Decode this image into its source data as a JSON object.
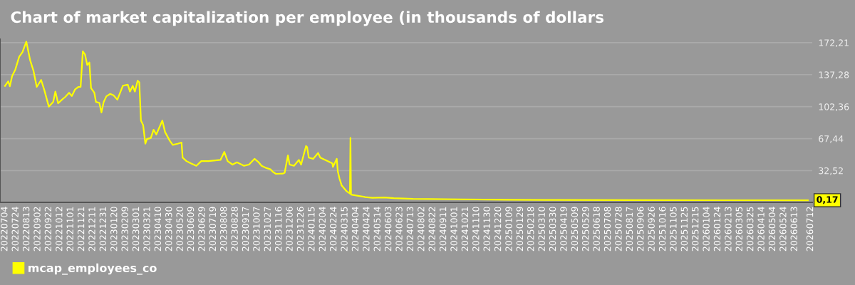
{
  "chart_data": {
    "type": "line",
    "title": "Chart of market capitalization per employee (in thousands of dollars",
    "x": [
      "2022-07-04",
      "2022-07-10",
      "2022-07-13",
      "2022-07-17",
      "2022-07-23",
      "2022-07-30",
      "2022-08-05",
      "2022-08-12",
      "2022-08-19",
      "2022-08-25",
      "2022-08-31",
      "2022-09-08",
      "2022-09-14",
      "2022-09-22",
      "2022-09-30",
      "2022-10-04",
      "2022-10-09",
      "2022-10-16",
      "2022-10-22",
      "2022-10-29",
      "2022-11-03",
      "2022-11-09",
      "2022-11-15",
      "2022-11-19",
      "2022-11-23",
      "2022-11-27",
      "2022-12-01",
      "2022-12-05",
      "2022-12-08",
      "2022-12-14",
      "2022-12-17",
      "2022-12-23",
      "2022-12-27",
      "2022-12-31",
      "2023-01-05",
      "2023-01-12",
      "2023-01-18",
      "2023-01-25",
      "2023-02-04",
      "2023-02-13",
      "2023-02-17",
      "2023-02-22",
      "2023-02-26",
      "2023-03-03",
      "2023-03-06",
      "2023-03-09",
      "2023-03-13",
      "2023-03-17",
      "2023-03-20",
      "2023-03-27",
      "2023-04-01",
      "2023-04-06",
      "2023-04-17",
      "2023-04-22",
      "2023-04-30",
      "2023-05-06",
      "2023-05-15",
      "2023-05-22",
      "2023-05-24",
      "2023-05-31",
      "2023-06-08",
      "2023-06-18",
      "2023-06-27",
      "2023-07-10",
      "2023-08-01",
      "2023-08-08",
      "2023-08-14",
      "2023-08-23",
      "2023-08-31",
      "2023-09-13",
      "2023-09-22",
      "2023-10-02",
      "2023-10-09",
      "2023-10-15",
      "2023-10-24",
      "2023-10-31",
      "2023-11-04",
      "2023-11-10",
      "2023-11-23",
      "2023-11-26",
      "2023-12-02",
      "2023-12-05",
      "2023-12-13",
      "2023-12-22",
      "2023-12-26",
      "2024-01-04",
      "2024-01-06",
      "2024-01-09",
      "2024-01-17",
      "2024-01-26",
      "2024-01-30",
      "2024-02-08",
      "2024-02-21",
      "2024-02-22",
      "2024-02-29",
      "2024-03-02",
      "2024-03-05",
      "2024-03-09",
      "2024-03-18",
      "2024-03-24",
      "2024-03-25",
      "2024-03-26",
      "2024-04-21",
      "2024-05-04",
      "2024-05-26",
      "2024-06-12",
      "2024-07-17",
      "2024-10-12",
      "2025-01-05",
      "2025-04-02",
      "2025-09-05",
      "2026-07-07"
    ],
    "series": [
      {
        "name": "mcap_employees_co",
        "color": "#ffff00",
        "values": [
          125,
          130,
          124.6,
          135.5,
          143,
          156.8,
          161.9,
          173.3,
          153,
          141.6,
          123.9,
          131.5,
          120.1,
          102.4,
          107.5,
          118.8,
          106,
          110,
          113,
          117.5,
          114,
          121.3,
          123.9,
          124,
          162.7,
          159.3,
          147.9,
          150.5,
          122.6,
          117.5,
          107.5,
          106.6,
          96,
          107.4,
          113.7,
          116.3,
          114.8,
          110,
          125.1,
          126.4,
          118.8,
          125.1,
          118.8,
          130.7,
          129,
          87.2,
          82.2,
          61.9,
          67,
          68.2,
          77.1,
          72,
          87.2,
          74.6,
          65.7,
          60.6,
          61.9,
          63.2,
          46.7,
          42.9,
          40.4,
          37.8,
          42.9,
          42.9,
          44.2,
          53,
          42.9,
          39.1,
          41.6,
          37.8,
          39.1,
          45.4,
          42,
          37.8,
          35.3,
          34,
          31.5,
          29,
          29.3,
          30.2,
          49.2,
          39.1,
          37.8,
          44.2,
          39.1,
          59.4,
          58.1,
          46.7,
          45.4,
          51.8,
          46.7,
          44.2,
          40.4,
          36.6,
          45.4,
          31.5,
          23.9,
          16.3,
          10,
          7.5,
          68.2,
          6.4,
          3.7,
          2.9,
          3.2,
          2.4,
          1.7,
          1.2,
          0.7,
          0.5,
          0.3,
          0.17
        ]
      }
    ],
    "annotations": [
      {
        "text": "0,17",
        "x": "2026-07-07",
        "y": 0.17
      }
    ],
    "xlim": [
      "2022-06-25",
      "2026-07-15"
    ],
    "ylim": [
      -2.1,
      176
    ],
    "yticks": [
      {
        "value": 32.52,
        "label": "32,52"
      },
      {
        "value": 67.44,
        "label": "67,44"
      },
      {
        "value": 102.36,
        "label": "102,36"
      },
      {
        "value": 137.28,
        "label": "137,28"
      },
      {
        "value": 172.21,
        "label": "172,21"
      }
    ],
    "xticks": [
      {
        "value": "2022-07-04",
        "label": "20220704"
      },
      {
        "value": "2022-07-24",
        "label": "20220724"
      },
      {
        "value": "2022-08-13",
        "label": "20220813"
      },
      {
        "value": "2022-09-02",
        "label": "20220902"
      },
      {
        "value": "2022-09-22",
        "label": "20220922"
      },
      {
        "value": "2022-10-12",
        "label": "20221012"
      },
      {
        "value": "2022-11-01",
        "label": "20221101"
      },
      {
        "value": "2022-11-21",
        "label": "20221121"
      },
      {
        "value": "2022-12-11",
        "label": "20221211"
      },
      {
        "value": "2022-12-31",
        "label": "20221231"
      },
      {
        "value": "2023-01-20",
        "label": "20230120"
      },
      {
        "value": "2023-02-09",
        "label": "20230209"
      },
      {
        "value": "2023-03-01",
        "label": "20230301"
      },
      {
        "value": "2023-03-21",
        "label": "20230321"
      },
      {
        "value": "2023-04-10",
        "label": "20230410"
      },
      {
        "value": "2023-04-30",
        "label": "20230430"
      },
      {
        "value": "2023-05-20",
        "label": "20230520"
      },
      {
        "value": "2023-06-09",
        "label": "20230609"
      },
      {
        "value": "2023-06-29",
        "label": "20230629"
      },
      {
        "value": "2023-07-19",
        "label": "20230719"
      },
      {
        "value": "2023-08-08",
        "label": "20230808"
      },
      {
        "value": "2023-08-28",
        "label": "20230828"
      },
      {
        "value": "2023-09-17",
        "label": "20230917"
      },
      {
        "value": "2023-10-07",
        "label": "20231007"
      },
      {
        "value": "2023-10-27",
        "label": "20231027"
      },
      {
        "value": "2023-11-16",
        "label": "20231116"
      },
      {
        "value": "2023-12-06",
        "label": "20231206"
      },
      {
        "value": "2023-12-26",
        "label": "20231226"
      },
      {
        "value": "2024-01-15",
        "label": "20240115"
      },
      {
        "value": "2024-02-04",
        "label": "20240204"
      },
      {
        "value": "2024-02-24",
        "label": "20240224"
      },
      {
        "value": "2024-03-15",
        "label": "20240315"
      },
      {
        "value": "2024-04-04",
        "label": "20240404"
      },
      {
        "value": "2024-04-24",
        "label": "20240424"
      },
      {
        "value": "2024-05-14",
        "label": "20240514"
      },
      {
        "value": "2024-06-03",
        "label": "20240603"
      },
      {
        "value": "2024-06-23",
        "label": "20240623"
      },
      {
        "value": "2024-07-13",
        "label": "20240713"
      },
      {
        "value": "2024-08-02",
        "label": "20240802"
      },
      {
        "value": "2024-08-22",
        "label": "20240822"
      },
      {
        "value": "2024-09-11",
        "label": "20240911"
      },
      {
        "value": "2024-10-01",
        "label": "20241001"
      },
      {
        "value": "2024-10-21",
        "label": "20241021"
      },
      {
        "value": "2024-11-10",
        "label": "20241110"
      },
      {
        "value": "2024-11-30",
        "label": "20241130"
      },
      {
        "value": "2024-12-20",
        "label": "20241220"
      },
      {
        "value": "2025-01-09",
        "label": "20250109"
      },
      {
        "value": "2025-01-29",
        "label": "20250129"
      },
      {
        "value": "2025-02-18",
        "label": "20250218"
      },
      {
        "value": "2025-03-10",
        "label": "20250310"
      },
      {
        "value": "2025-03-30",
        "label": "20250330"
      },
      {
        "value": "2025-04-19",
        "label": "20250419"
      },
      {
        "value": "2025-05-09",
        "label": "20250509"
      },
      {
        "value": "2025-05-29",
        "label": "20250529"
      },
      {
        "value": "2025-06-18",
        "label": "20250618"
      },
      {
        "value": "2025-07-08",
        "label": "20250708"
      },
      {
        "value": "2025-07-28",
        "label": "20250728"
      },
      {
        "value": "2025-08-17",
        "label": "20250817"
      },
      {
        "value": "2025-09-06",
        "label": "20250906"
      },
      {
        "value": "2025-09-26",
        "label": "20250926"
      },
      {
        "value": "2025-10-16",
        "label": "20251016"
      },
      {
        "value": "2025-11-05",
        "label": "20251105"
      },
      {
        "value": "2025-11-25",
        "label": "20251125"
      },
      {
        "value": "2025-12-15",
        "label": "20251215"
      },
      {
        "value": "2026-01-04",
        "label": "20260104"
      },
      {
        "value": "2026-01-24",
        "label": "20260124"
      },
      {
        "value": "2026-02-13",
        "label": "20260213"
      },
      {
        "value": "2026-03-05",
        "label": "20260305"
      },
      {
        "value": "2026-03-25",
        "label": "20260325"
      },
      {
        "value": "2026-04-14",
        "label": "20260414"
      },
      {
        "value": "2026-05-04",
        "label": "20260504"
      },
      {
        "value": "2026-05-24",
        "label": "20260524"
      },
      {
        "value": "2026-06-13",
        "label": "20260613"
      },
      {
        "value": "2026-07-12",
        "label": "20260712"
      }
    ],
    "grid": "y",
    "legend": "bottom left",
    "line_style": "solid",
    "marker": "none"
  }
}
